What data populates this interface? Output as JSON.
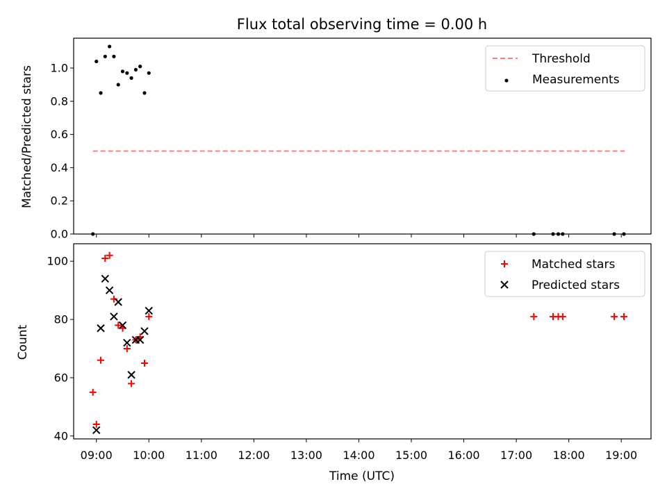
{
  "title": "Flux total observing time = 0.00 h",
  "xlabel": "Time (UTC)",
  "x_ticks": [
    "09:00",
    "10:00",
    "11:00",
    "12:00",
    "13:00",
    "14:00",
    "15:00",
    "16:00",
    "17:00",
    "18:00",
    "19:00"
  ],
  "colors": {
    "threshold": "#ff7f7f",
    "measurements": "#000000",
    "matched": "#ff0000",
    "predicted": "#000000"
  },
  "chart_data": [
    {
      "type": "scatter",
      "ylabel": "Matched/Predicted stars",
      "xlim": [
        "08:34",
        "19:34"
      ],
      "ylim": [
        0,
        1.18
      ],
      "y_ticks": [
        "0.0",
        "0.2",
        "0.4",
        "0.6",
        "0.8",
        "1.0"
      ],
      "legend_position": "top-right",
      "series": [
        {
          "name": "Threshold",
          "style": "dashed-line",
          "x": [
            "08:56",
            "19:04"
          ],
          "y": [
            0.5,
            0.5
          ]
        },
        {
          "name": "Measurements",
          "style": "dot",
          "x": [
            "08:56",
            "09:00",
            "09:05",
            "09:10",
            "09:15",
            "09:20",
            "09:25",
            "09:30",
            "09:35",
            "09:40",
            "09:45",
            "09:50",
            "09:55",
            "10:00",
            "17:20",
            "17:42",
            "17:48",
            "17:53",
            "18:52",
            "19:03"
          ],
          "y": [
            0.0,
            1.04,
            0.85,
            1.07,
            1.13,
            1.07,
            0.9,
            0.98,
            0.97,
            0.94,
            0.99,
            1.01,
            0.85,
            0.97,
            0.0,
            0.0,
            0.0,
            0.0,
            0.0,
            0.0
          ]
        }
      ]
    },
    {
      "type": "scatter",
      "ylabel": "Count",
      "xlim": [
        "08:34",
        "19:34"
      ],
      "ylim": [
        39,
        106
      ],
      "y_ticks": [
        "40",
        "60",
        "80",
        "100"
      ],
      "legend_position": "top-right",
      "series": [
        {
          "name": "Matched stars",
          "style": "plus",
          "x": [
            "08:56",
            "09:00",
            "09:05",
            "09:10",
            "09:15",
            "09:20",
            "09:25",
            "09:30",
            "09:35",
            "09:40",
            "09:45",
            "09:50",
            "09:55",
            "10:00",
            "17:20",
            "17:42",
            "17:48",
            "17:53",
            "18:52",
            "19:03"
          ],
          "y": [
            55,
            44,
            66,
            101,
            102,
            87,
            78,
            77,
            70,
            58,
            73,
            74,
            65,
            81,
            81,
            81,
            81,
            81,
            81,
            81
          ]
        },
        {
          "name": "Predicted stars",
          "style": "x",
          "x": [
            "09:00",
            "09:05",
            "09:10",
            "09:15",
            "09:20",
            "09:25",
            "09:30",
            "09:35",
            "09:40",
            "09:45",
            "09:50",
            "09:55",
            "10:00"
          ],
          "y": [
            42,
            77,
            94,
            90,
            81,
            86,
            78,
            72,
            61,
            73,
            73,
            76,
            83
          ]
        }
      ]
    }
  ]
}
